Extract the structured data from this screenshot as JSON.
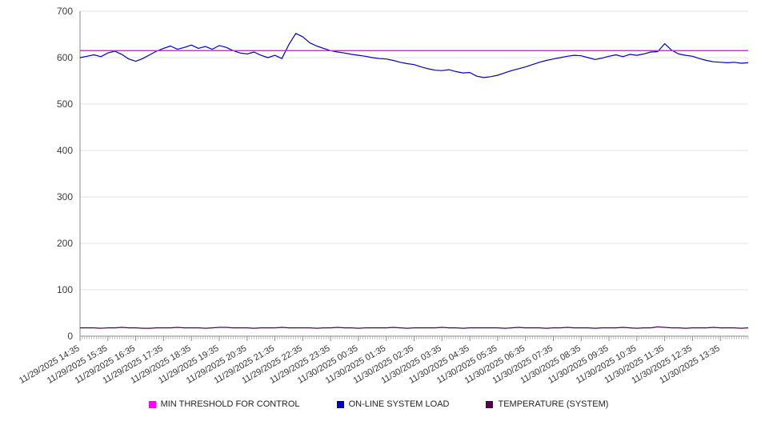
{
  "chart_data": {
    "type": "line",
    "title": "",
    "xlabel": "",
    "ylabel": "",
    "ylim": [
      0,
      700
    ],
    "y_ticks": [
      0,
      100,
      200,
      300,
      400,
      500,
      600,
      700
    ],
    "grid": "horizontal",
    "legend_position": "bottom",
    "x_tick_every": 4,
    "x_interval_minutes": 15,
    "x_tick_labels": [
      "11/29/2025 14:35",
      "11/29/2025 15:35",
      "11/29/2025 16:35",
      "11/29/2025 17:35",
      "11/29/2025 18:35",
      "11/29/2025 19:35",
      "11/29/2025 20:35",
      "11/29/2025 21:35",
      "11/29/2025 22:35",
      "11/29/2025 23:35",
      "11/30/2025 00:35",
      "11/30/2025 01:35",
      "11/30/2025 02:35",
      "11/30/2025 03:35",
      "11/30/2025 04:35",
      "11/30/2025 05:35",
      "11/30/2025 06:35",
      "11/30/2025 07:35",
      "11/30/2025 08:35",
      "11/30/2025 09:35",
      "11/30/2025 10:35",
      "11/30/2025 11:35",
      "11/30/2025 12:35",
      "11/30/2025 13:35"
    ],
    "series": [
      {
        "id": "min-threshold",
        "name": "MIN THRESHOLD FOR CONTROL",
        "color": "#ff00ff",
        "type": "hline",
        "value": 615
      },
      {
        "id": "system-load",
        "name": "ON-LINE SYSTEM LOAD",
        "color": "#0000cc",
        "type": "line",
        "values": [
          600,
          603,
          606,
          602,
          610,
          614,
          607,
          597,
          592,
          598,
          606,
          614,
          620,
          625,
          618,
          622,
          627,
          620,
          624,
          618,
          626,
          622,
          615,
          610,
          608,
          612,
          605,
          600,
          605,
          598,
          628,
          652,
          645,
          632,
          625,
          620,
          615,
          612,
          610,
          607,
          605,
          603,
          600,
          598,
          597,
          594,
          590,
          587,
          585,
          580,
          576,
          573,
          572,
          574,
          570,
          567,
          568,
          560,
          557,
          559,
          562,
          567,
          572,
          576,
          580,
          585,
          590,
          594,
          597,
          600,
          603,
          605,
          604,
          600,
          596,
          599,
          603,
          606,
          602,
          607,
          605,
          608,
          612,
          613,
          630,
          616,
          608,
          605,
          603,
          598,
          594,
          591,
          590,
          589,
          590,
          588,
          589
        ]
      },
      {
        "id": "temperature",
        "name": "TEMPERATURE (SYSTEM)",
        "color": "#550055",
        "type": "line",
        "values": [
          18,
          18,
          18,
          17,
          18,
          18,
          19,
          18,
          18,
          17,
          17,
          18,
          18,
          18,
          19,
          18,
          18,
          18,
          17,
          18,
          19,
          19,
          18,
          18,
          18,
          17,
          18,
          18,
          18,
          19,
          18,
          18,
          18,
          18,
          17,
          18,
          18,
          19,
          18,
          18,
          17,
          18,
          18,
          18,
          18,
          19,
          18,
          17,
          18,
          18,
          18,
          18,
          19,
          18,
          18,
          17,
          18,
          18,
          18,
          18,
          18,
          17,
          18,
          19,
          18,
          18,
          18,
          17,
          18,
          18,
          19,
          18,
          18,
          18,
          17,
          18,
          18,
          18,
          19,
          18,
          17,
          18,
          18,
          20,
          19,
          18,
          18,
          17,
          18,
          18,
          18,
          19,
          18,
          18,
          18,
          17,
          18
        ]
      }
    ]
  }
}
